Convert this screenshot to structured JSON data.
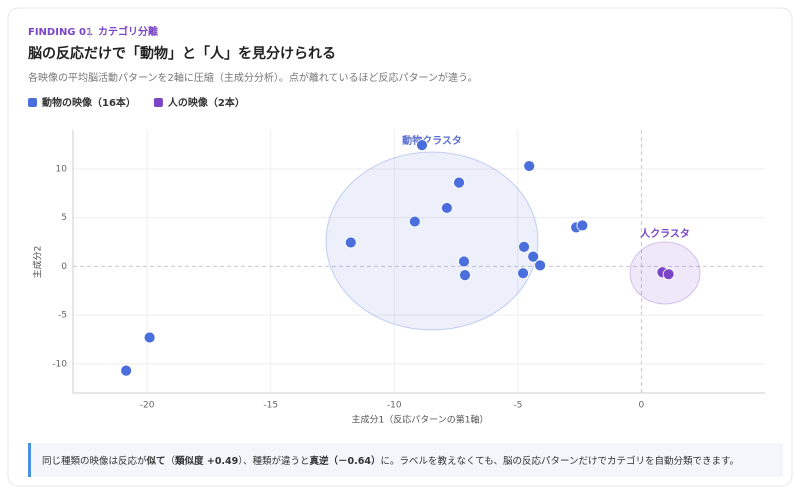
{
  "header": {
    "tag": "FINDING 01",
    "category": "カテゴリ分離",
    "title": "脳の反応だけで「動物」と「人」を見分けられる",
    "subtitle": "各映像の平均脳活動パターンを2軸に圧縮（主成分分析）。点が離れているほど反応パターンが違う。"
  },
  "chart_data": {
    "type": "scatter",
    "xlabel": "主成分1（反応パターンの第1軸）",
    "ylabel": "主成分2",
    "xlim": [
      -23,
      5
    ],
    "ylim": [
      -13,
      14
    ],
    "xticks": [
      -20,
      -15,
      -10,
      -5,
      0
    ],
    "yticks": [
      -10,
      -5,
      0,
      5,
      10
    ],
    "grid": true,
    "annotations": [
      "動物クラスタ",
      "人クラスタ"
    ],
    "series": [
      {
        "name": "動物の映像（16本）",
        "color": "#4a6fdc",
        "x": [
          -20.85,
          -19.9,
          -11.76,
          -9.17,
          -8.88,
          -7.87,
          -7.38,
          -7.18,
          -7.14,
          -4.54,
          -4.75,
          -4.38,
          -4.1,
          -4.79,
          -2.64,
          -2.39
        ],
        "y": [
          -10.7,
          -7.3,
          2.45,
          4.6,
          12.45,
          6.0,
          8.6,
          0.5,
          -0.9,
          10.3,
          2.0,
          1.0,
          0.1,
          -0.7,
          4.0,
          4.2
        ]
      },
      {
        "name": "人の映像（2本）",
        "color": "#7a45c8",
        "x": [
          0.85,
          1.1
        ],
        "y": [
          -0.6,
          -0.8
        ]
      }
    ]
  },
  "note": {
    "parts": [
      "同じ種類の映像は反応が",
      "似て",
      "（",
      "類似度 +0.49",
      "）、種類が違うと",
      "真逆",
      "（－0.64）",
      "に。ラベルを教えなくても、脳の反応パターンだけでカテゴリを自動分類できます。"
    ]
  }
}
